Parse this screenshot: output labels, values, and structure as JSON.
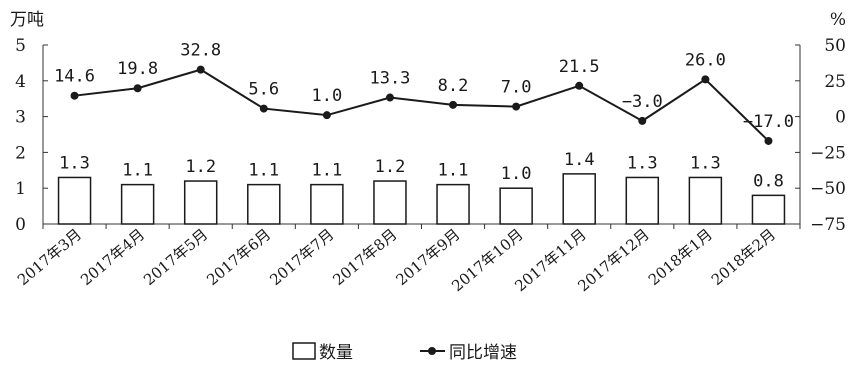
{
  "chart_data": {
    "type": "bar+line",
    "categories": [
      "2017年3月",
      "2017年4月",
      "2017年5月",
      "2017年6月",
      "2017年7月",
      "2017年8月",
      "2017年9月",
      "2017年10月",
      "2017年11月",
      "2017年12月",
      "2018年1月",
      "2018年2月"
    ],
    "series": [
      {
        "name": "数量",
        "type": "bar",
        "axis": "left",
        "values": [
          1.3,
          1.1,
          1.2,
          1.1,
          1.1,
          1.2,
          1.1,
          1.0,
          1.4,
          1.3,
          1.3,
          0.8
        ],
        "labels": [
          "1.3",
          "1.1",
          "1.2",
          "1.1",
          "1.1",
          "1.2",
          "1.1",
          "1.0",
          "1.4",
          "1.3",
          "1.3",
          "0.8"
        ]
      },
      {
        "name": "同比增速",
        "type": "line",
        "axis": "right",
        "values": [
          14.6,
          19.8,
          32.8,
          5.6,
          1.0,
          13.3,
          8.2,
          7.0,
          21.5,
          -3.0,
          26.0,
          -17.0
        ],
        "labels": [
          "14.6",
          "19.8",
          "32.8",
          "5.6",
          "1.0",
          "13.3",
          "8.2",
          "7.0",
          "21.5",
          "−3.0",
          "26.0",
          "−17.0"
        ]
      }
    ],
    "y_left": {
      "unit": "万吨",
      "ylim": [
        0,
        5
      ],
      "ticks": [
        "0",
        "1",
        "2",
        "3",
        "4",
        "5"
      ]
    },
    "y_right": {
      "unit": "%",
      "ylim": [
        -75,
        50
      ],
      "ticks": [
        "−75",
        "−50",
        "−25",
        "0",
        "25",
        "50"
      ]
    },
    "grid": false,
    "legend_position": "bottom-center",
    "colors": {
      "bar_fill": "#ffffff",
      "bar_stroke": "#1a1a1a",
      "line": "#1a1a1a",
      "axis": "#333333"
    }
  }
}
